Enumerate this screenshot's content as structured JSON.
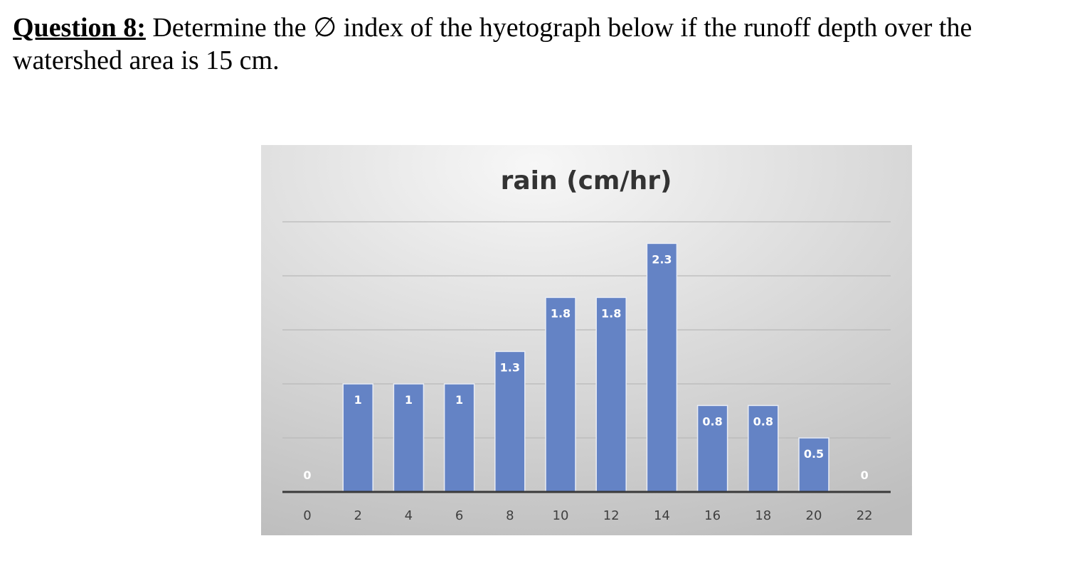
{
  "question": {
    "label": "Question 8:",
    "text": " Determine the ∅ index of the hyetograph below if the runoff depth over the watershed area is 15 cm."
  },
  "colors": {
    "bar": "#6483c5",
    "bar_edge": "#e8ecf4",
    "gridline": "#b9b9b9",
    "axis": "#3a3a3a",
    "background_light": "#f7f7f7",
    "background_dark": "#bdbdbd"
  },
  "chart_data": {
    "type": "bar",
    "title": "rain (cm/hr)",
    "xlabel": "",
    "ylabel": "",
    "categories": [
      "0",
      "2",
      "4",
      "6",
      "8",
      "10",
      "12",
      "14",
      "16",
      "18",
      "20",
      "22"
    ],
    "values": [
      0,
      1,
      1,
      1,
      1.3,
      1.8,
      1.8,
      2.3,
      0.8,
      0.8,
      0.5,
      0
    ],
    "data_labels": [
      "0",
      "1",
      "1",
      "1",
      "1.3",
      "1.8",
      "1.8",
      "2.3",
      "0.8",
      "0.8",
      "0.5",
      "0"
    ],
    "ylim": [
      0,
      2.5
    ],
    "gridline_values": [
      0.5,
      1,
      1.5,
      2,
      2.5
    ],
    "grid": true,
    "legend": "none"
  }
}
